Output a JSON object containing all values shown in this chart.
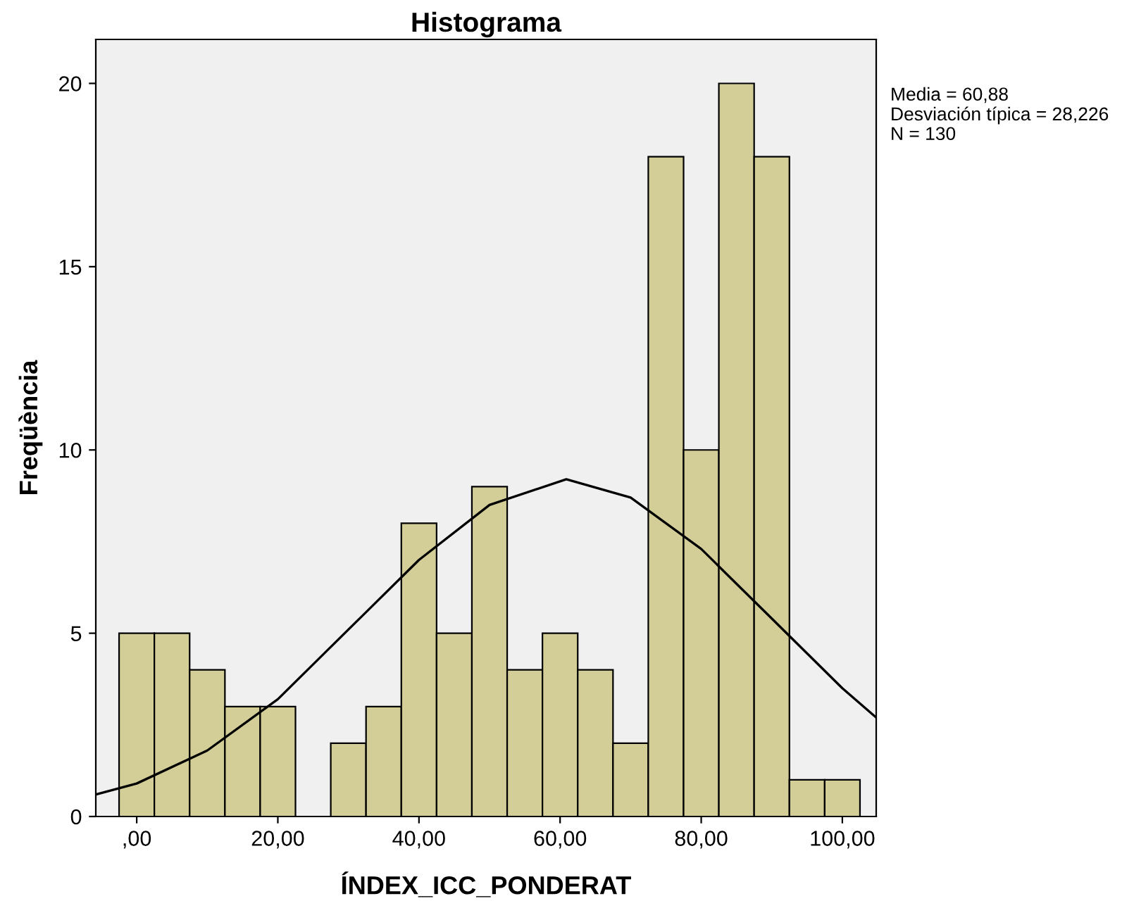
{
  "chart_data": {
    "type": "histogram",
    "title": "Histograma",
    "xlabel": "ÍNDEX_ICC_PONDERAT",
    "ylabel": "Freqüència",
    "bins": [
      -2.5,
      2.5,
      7.5,
      12.5,
      17.5,
      22.5,
      27.5,
      32.5,
      37.5,
      42.5,
      47.5,
      52.5,
      57.5,
      62.5,
      67.5,
      72.5,
      77.5,
      82.5,
      87.5,
      92.5,
      97.5,
      102.5
    ],
    "values": [
      5,
      5,
      4,
      3,
      3,
      0,
      2,
      3,
      8,
      5,
      9,
      4,
      5,
      4,
      2,
      18,
      10,
      20,
      18,
      1,
      1
    ],
    "color": "#d3ce97",
    "series": [
      {
        "type": "line",
        "color": "#000000",
        "x": [
          -5.8,
          0,
          10,
          20,
          30,
          40,
          50,
          60.88,
          70,
          80,
          90,
          100,
          104.8
        ],
        "values": [
          0.6,
          0.9,
          1.8,
          3.2,
          5.1,
          7.0,
          8.5,
          9.2,
          8.7,
          7.3,
          5.4,
          3.5,
          2.7
        ]
      }
    ],
    "annotations": [
      "Media = 60,88",
      "Desviación típica = 28,226",
      "N = 130"
    ],
    "xlim": [
      -5.8,
      104.8
    ],
    "ylim": [
      0,
      21.2
    ],
    "xticks": [
      {
        "value": 0,
        "label": ",00"
      },
      {
        "value": 20,
        "label": "20,00"
      },
      {
        "value": 40,
        "label": "40,00"
      },
      {
        "value": 60,
        "label": "60,00"
      },
      {
        "value": 80,
        "label": "80,00"
      },
      {
        "value": 100,
        "label": "100,00"
      }
    ],
    "yticks": [
      0,
      5,
      10,
      15,
      20
    ],
    "grid": false,
    "legend": false
  }
}
